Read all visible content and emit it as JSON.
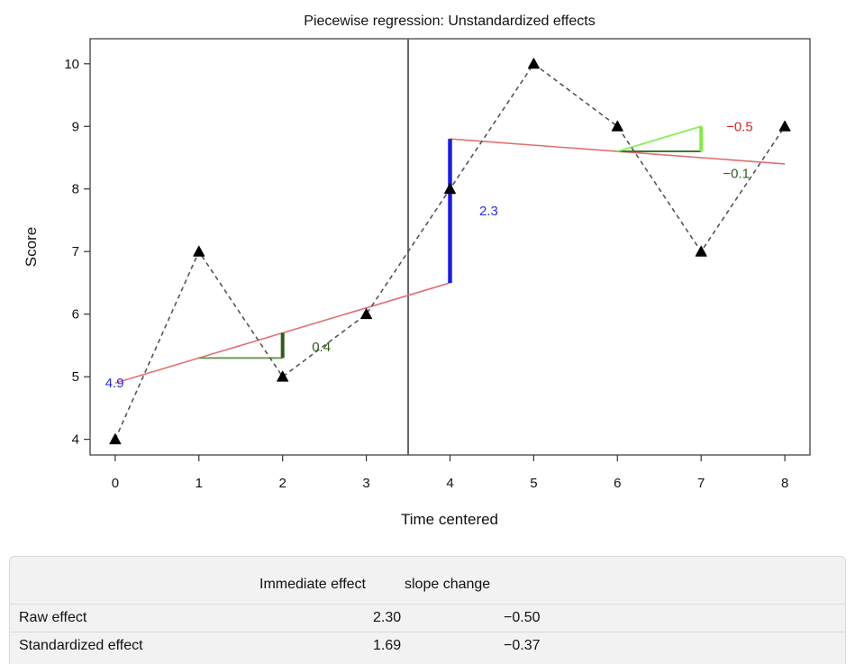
{
  "chart_data": {
    "type": "line",
    "title": "Piecewise regression: Unstandardized effects",
    "xlabel": "Time centered",
    "ylabel": "Score",
    "xlim": [
      -0.3,
      8.3
    ],
    "ylim": [
      3.75,
      10.4
    ],
    "x_ticks": [
      0,
      1,
      2,
      3,
      4,
      5,
      6,
      7,
      8
    ],
    "y_ticks": [
      4,
      5,
      6,
      7,
      8,
      9,
      10
    ],
    "grid": false,
    "series": [
      {
        "x": [
          0,
          1,
          2,
          3,
          4,
          5,
          6,
          7,
          8
        ],
        "values": [
          4,
          7,
          5,
          6,
          8,
          10,
          9,
          7,
          9
        ],
        "color": "#555555",
        "style": "dashed",
        "marker": "triangle"
      }
    ],
    "phase_change_x": 3.5,
    "regression_lines": [
      {
        "x": [
          0,
          4
        ],
        "y": [
          4.9,
          6.5
        ],
        "color": "#e07070"
      },
      {
        "x": [
          4,
          8
        ],
        "y": [
          8.8,
          8.4
        ],
        "color": "#e07070"
      }
    ],
    "effect_markers": [
      {
        "kind": "slope-horizontal",
        "x": [
          1,
          2
        ],
        "y": [
          5.3,
          5.3
        ],
        "color": "#6a9a5a"
      },
      {
        "kind": "slope-vertical",
        "x": [
          2,
          2
        ],
        "y": [
          5.3,
          5.7
        ],
        "color": "#2e5e1e"
      },
      {
        "kind": "immediate-effect",
        "x": [
          4,
          4
        ],
        "y": [
          6.5,
          8.8
        ],
        "color": "#1a1aee"
      },
      {
        "kind": "slope-horizontal",
        "x": [
          6,
          7
        ],
        "y": [
          8.6,
          8.6
        ],
        "color": "#3a7a2a"
      },
      {
        "kind": "slope-hypotenuse",
        "x": [
          6,
          7
        ],
        "y": [
          8.6,
          9.0
        ],
        "color": "#90ee60"
      },
      {
        "kind": "slope-vertical",
        "x": [
          7,
          7
        ],
        "y": [
          8.6,
          9.0
        ],
        "color": "#80ee40"
      }
    ],
    "annotations": [
      {
        "text": "4.9",
        "x": -0.12,
        "y": 4.9,
        "color": "#2a2aee"
      },
      {
        "text": "0.4",
        "x": 2.35,
        "y": 5.48,
        "color": "#2e5e1e"
      },
      {
        "text": "2.3",
        "x": 4.35,
        "y": 7.65,
        "color": "#2a2aee"
      },
      {
        "text": "−0.5",
        "x": 7.3,
        "y": 9.0,
        "color": "#dd2222"
      },
      {
        "text": "−0.1",
        "x": 7.26,
        "y": 8.25,
        "color": "#2e5e1e"
      }
    ]
  },
  "effects_table": {
    "headers": [
      "Immediate effect",
      "slope change"
    ],
    "rows": [
      {
        "label": "Raw effect",
        "immediate": "2.30",
        "slope": "−0.50"
      },
      {
        "label": "Standardized effect",
        "immediate": "1.69",
        "slope": "−0.37"
      }
    ]
  }
}
